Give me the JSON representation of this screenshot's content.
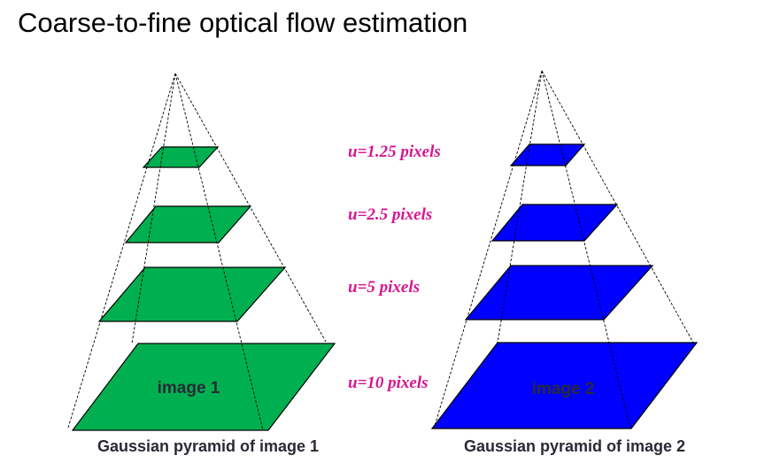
{
  "title": "Coarse-to-fine optical flow estimation",
  "colors": {
    "pyramid1": "#00b050",
    "pyramid2": "#0000ff",
    "flow_label": "#d6168f",
    "caption": "#2a2a35"
  },
  "pyramids": [
    {
      "image_label": "image 1",
      "caption": "Gaussian pyramid of image 1"
    },
    {
      "image_label": "image 2",
      "caption": "Gaussian pyramid of image 2"
    }
  ],
  "flow_labels": [
    "u=1.25 pixels",
    "u=2.5 pixels",
    "u=5 pixels",
    "u=10 pixels"
  ]
}
